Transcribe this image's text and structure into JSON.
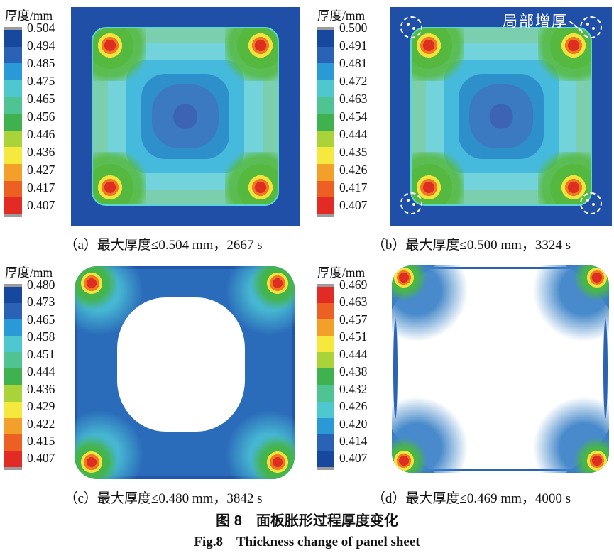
{
  "figure": {
    "caption_zh": "图 8　面板胀形过程厚度变化",
    "caption_en": "Fig.8　Thickness change of panel sheet"
  },
  "legend_title": "厚度/mm",
  "annotation": {
    "label": "局部增厚",
    "marker": "white dashed circles with dots at the four panel corners"
  },
  "panels": {
    "a": {
      "caption": "（a）最大厚度≤0.504 mm，2667 s",
      "legend_values": [
        "0.504",
        "0.494",
        "0.485",
        "0.475",
        "0.465",
        "0.456",
        "0.446",
        "0.436",
        "0.427",
        "0.417",
        "0.407"
      ],
      "palette": [
        "#16489d",
        "#2a63b5",
        "#2a9ad6",
        "#4ec7ce",
        "#4fc392",
        "#3fb14f",
        "#a9d339",
        "#f4e93c",
        "#f3a02b",
        "#ec6023",
        "#e12b24"
      ]
    },
    "b": {
      "caption": "（b）最大厚度≤0.500 mm，3324 s",
      "legend_values": [
        "0.500",
        "0.491",
        "0.481",
        "0.472",
        "0.463",
        "0.454",
        "0.444",
        "0.435",
        "0.426",
        "0.417",
        "0.407"
      ],
      "palette": [
        "#16489d",
        "#2a63b5",
        "#2a9ad6",
        "#4ec7ce",
        "#4fc392",
        "#3fb14f",
        "#a9d339",
        "#f4e93c",
        "#f3a02b",
        "#ec6023",
        "#e12b24"
      ]
    },
    "c": {
      "caption": "（c）最大厚度≤0.480 mm，3842 s",
      "legend_values": [
        "0.480",
        "0.473",
        "0.465",
        "0.458",
        "0.451",
        "0.444",
        "0.436",
        "0.429",
        "0.422",
        "0.415",
        "0.407"
      ],
      "palette": [
        "#16489d",
        "#2a63b5",
        "#2a9ad6",
        "#4ec7ce",
        "#4fc392",
        "#3fb14f",
        "#a9d339",
        "#f4e93c",
        "#f3a02b",
        "#ec6023",
        "#e12b24"
      ]
    },
    "d": {
      "caption": "（d）最大厚度≤0.469 mm，4000 s",
      "legend_values": [
        "0.469",
        "0.463",
        "0.457",
        "0.451",
        "0.444",
        "0.438",
        "0.432",
        "0.426",
        "0.420",
        "0.414",
        "0.407"
      ],
      "palette": [
        "#e12b24",
        "#ec6023",
        "#f3a02b",
        "#f4e93c",
        "#a9d339",
        "#3fb14f",
        "#4fc392",
        "#4ec7ce",
        "#2a9ad6",
        "#2a63b5",
        "#16489d"
      ]
    }
  },
  "colors": {
    "blank_background": "#1f4fa6",
    "panel_frame_blue": "#2b6cba",
    "hotspot_red": "#de2e1f",
    "annotation_text": "#ffffff",
    "colorbar_end_caps": "#9c9c9c"
  },
  "chart_data": [
    {
      "type": "heatmap",
      "subplot": "a",
      "title": "(a) 最大厚度≤0.504 mm，2667 s",
      "colorbar_label": "厚度/mm",
      "levels_mm": [
        0.504,
        0.494,
        0.485,
        0.475,
        0.465,
        0.456,
        0.446,
        0.436,
        0.427,
        0.417,
        0.407
      ],
      "max_thickness_mm": 0.504,
      "time_s": 2667,
      "color_order": "blue = thickest (top), red = thinnest (bottom)",
      "pattern": "square blank: dark-blue thick rim, rounded panel with light green/cyan edge band, concentric cyan-to-blue rings thinning toward medium-blue center with small dark-blue spot; four thin red hot spots at the rounded corners"
    },
    {
      "type": "heatmap",
      "subplot": "b",
      "title": "(b) 最大厚度≤0.500 mm，3324 s",
      "colorbar_label": "厚度/mm",
      "levels_mm": [
        0.5,
        0.491,
        0.481,
        0.472,
        0.463,
        0.454,
        0.444,
        0.435,
        0.426,
        0.417,
        0.407
      ],
      "max_thickness_mm": 0.5,
      "time_s": 3324,
      "color_order": "blue = thickest (top), red = thinnest (bottom)",
      "annotation": "局部增厚 (local thickening) pointing to white dashed circles at the four corners",
      "pattern": "same concentric thinning pattern as (a); white dashed circles mark local thickening zones at the four corners"
    },
    {
      "type": "heatmap",
      "subplot": "c",
      "title": "(c) 最大厚度≤0.480 mm，3842 s",
      "colorbar_label": "厚度/mm",
      "levels_mm": [
        0.48,
        0.473,
        0.465,
        0.458,
        0.451,
        0.444,
        0.436,
        0.429,
        0.422,
        0.415,
        0.407
      ],
      "max_thickness_mm": 0.48,
      "time_s": 3842,
      "color_order": "blue = thickest (top), red = thinnest (bottom)",
      "pattern": "blue rounded-square ring on white page; large white (below-scale) rounded hole in the center; red/orange/yellow/green hot spots with cyan halos at the four corners"
    },
    {
      "type": "heatmap",
      "subplot": "d",
      "title": "(d) 最大厚度≤0.469 mm，4000 s",
      "colorbar_label": "厚度/mm",
      "levels_mm": [
        0.469,
        0.463,
        0.457,
        0.451,
        0.444,
        0.438,
        0.432,
        0.426,
        0.42,
        0.414,
        0.407
      ],
      "max_thickness_mm": 0.469,
      "time_s": 4000,
      "color_order": "red = thickest (top), blue = thinnest (bottom)",
      "pattern": "mostly white (below scale); only four dark-blue corner wedges with red/orange/yellow/green hot spots remain, plus thin blue arcs along the edge midlines"
    }
  ]
}
